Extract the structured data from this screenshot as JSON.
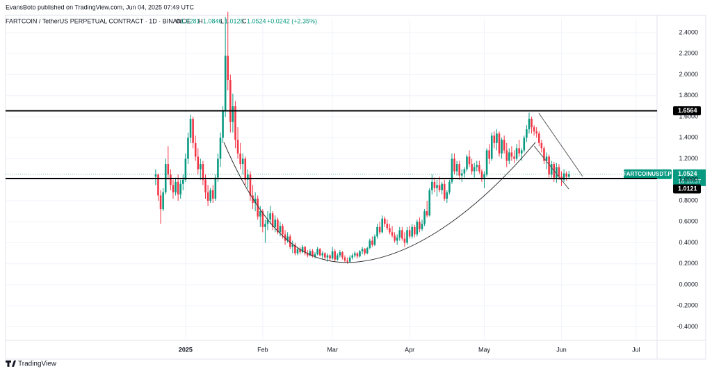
{
  "header": {
    "publisher": "EvansBoto published on TradingView.com, Jun 04, 2025 07:49 UTC",
    "instrument": "FARTCOIN / TetherUS PERPETUAL CONTRACT · 1D · BINANCE",
    "ohlc_labels": [
      "O",
      "H",
      "L",
      "C"
    ],
    "change": "+0.0242 (+2.35%)"
  },
  "footer": {
    "brand": "TradingView"
  },
  "chart_data": {
    "type": "candlestick",
    "up_color": "#089981",
    "down_color": "#f23645",
    "grid": true,
    "xlim": [
      -60.3,
      201.4
    ],
    "ylim": [
      -0.529,
      2.526
    ],
    "xticks": [
      {
        "value": 12,
        "label": "2025"
      },
      {
        "value": 43,
        "label": "Feb"
      },
      {
        "value": 71,
        "label": "Mar"
      },
      {
        "value": 102,
        "label": "Apr"
      },
      {
        "value": 132,
        "label": "May"
      },
      {
        "value": 163,
        "label": "Jun"
      },
      {
        "value": 193,
        "label": "Jul"
      }
    ],
    "yticks": [
      {
        "value": 2.4,
        "label": "2.4000"
      },
      {
        "value": 2.2,
        "label": "2.2000"
      },
      {
        "value": 2.0,
        "label": "2.0000"
      },
      {
        "value": 1.8,
        "label": "1.8000"
      },
      {
        "value": 1.6,
        "label": "1.6000"
      },
      {
        "value": 1.4,
        "label": "1.4000"
      },
      {
        "value": 1.2,
        "label": "1.2000"
      },
      {
        "value": 1.0,
        "label": "1.0000"
      },
      {
        "value": 0.8,
        "label": "0.8000"
      },
      {
        "value": 0.6,
        "label": "0.6000"
      },
      {
        "value": 0.4,
        "label": "0.4000"
      },
      {
        "value": 0.2,
        "label": "0.2000"
      },
      {
        "value": 0,
        "label": "0.0000"
      },
      {
        "value": -0.2,
        "label": "-0.2000"
      },
      {
        "value": -0.4,
        "label": "-0.4000"
      }
    ],
    "levels": [
      1.6564,
      1.0121
    ],
    "symbol": "FARTCOINUSDT.P",
    "countdown": "16:10:37",
    "candles": [
      [
        1.03,
        1.1,
        0.95,
        1.05
      ],
      [
        1.05,
        1.06,
        0.8,
        0.85
      ],
      [
        0.85,
        0.9,
        0.58,
        0.72
      ],
      [
        0.72,
        0.92,
        0.7,
        0.88
      ],
      [
        0.88,
        1.2,
        0.86,
        1.15
      ],
      [
        1.15,
        1.32,
        1.0,
        1.05
      ],
      [
        1.05,
        1.1,
        0.9,
        0.95
      ],
      [
        0.95,
        1.0,
        0.82,
        0.88
      ],
      [
        0.88,
        1.02,
        0.85,
        0.98
      ],
      [
        0.98,
        1.05,
        0.8,
        0.86
      ],
      [
        0.86,
        1.0,
        0.82,
        0.96
      ],
      [
        0.96,
        1.05,
        0.9,
        1.0
      ],
      [
        1.0,
        1.25,
        0.98,
        1.2
      ],
      [
        1.2,
        1.45,
        1.15,
        1.4
      ],
      [
        1.4,
        1.62,
        1.35,
        1.58
      ],
      [
        1.58,
        1.6,
        1.3,
        1.35
      ],
      [
        1.35,
        1.42,
        1.18,
        1.22
      ],
      [
        1.22,
        1.3,
        1.05,
        1.1
      ],
      [
        1.1,
        1.2,
        1.0,
        1.15
      ],
      [
        1.15,
        1.18,
        0.95,
        1.0
      ],
      [
        1.0,
        1.05,
        0.82,
        0.88
      ],
      [
        0.88,
        0.95,
        0.75,
        0.8
      ],
      [
        0.8,
        0.92,
        0.78,
        0.9
      ],
      [
        0.9,
        0.95,
        0.78,
        0.82
      ],
      [
        0.82,
        1.05,
        0.8,
        1.02
      ],
      [
        1.02,
        1.25,
        0.98,
        1.2
      ],
      [
        1.2,
        1.45,
        1.12,
        1.4
      ],
      [
        1.4,
        1.7,
        1.35,
        1.65
      ],
      [
        1.65,
        2.55,
        1.6,
        2.18
      ],
      [
        2.18,
        2.6,
        1.85,
        1.95
      ],
      [
        1.95,
        2.0,
        1.45,
        1.55
      ],
      [
        1.55,
        1.82,
        1.45,
        1.7
      ],
      [
        1.7,
        1.75,
        1.3,
        1.38
      ],
      [
        1.38,
        1.5,
        1.2,
        1.25
      ],
      [
        1.25,
        1.35,
        1.1,
        1.15
      ],
      [
        1.15,
        1.25,
        1.05,
        1.2
      ],
      [
        1.2,
        1.22,
        0.95,
        1.0
      ],
      [
        1.0,
        1.1,
        0.92,
        1.05
      ],
      [
        1.05,
        1.08,
        0.8,
        0.85
      ],
      [
        0.85,
        0.95,
        0.72,
        0.78
      ],
      [
        0.78,
        0.88,
        0.7,
        0.82
      ],
      [
        0.82,
        0.85,
        0.62,
        0.65
      ],
      [
        0.65,
        0.75,
        0.55,
        0.7
      ],
      [
        0.7,
        0.72,
        0.5,
        0.55
      ],
      [
        0.55,
        0.62,
        0.4,
        0.58
      ],
      [
        0.58,
        0.7,
        0.52,
        0.62
      ],
      [
        0.62,
        0.75,
        0.58,
        0.68
      ],
      [
        0.68,
        0.7,
        0.52,
        0.55
      ],
      [
        0.55,
        0.66,
        0.5,
        0.62
      ],
      [
        0.62,
        0.64,
        0.48,
        0.5
      ],
      [
        0.5,
        0.6,
        0.46,
        0.56
      ],
      [
        0.56,
        0.58,
        0.44,
        0.48
      ],
      [
        0.48,
        0.52,
        0.38,
        0.42
      ],
      [
        0.42,
        0.5,
        0.4,
        0.46
      ],
      [
        0.46,
        0.48,
        0.34,
        0.36
      ],
      [
        0.36,
        0.42,
        0.3,
        0.38
      ],
      [
        0.38,
        0.4,
        0.28,
        0.3
      ],
      [
        0.3,
        0.36,
        0.28,
        0.34
      ],
      [
        0.34,
        0.36,
        0.29,
        0.31
      ],
      [
        0.31,
        0.38,
        0.3,
        0.36
      ],
      [
        0.36,
        0.37,
        0.28,
        0.3
      ],
      [
        0.3,
        0.33,
        0.26,
        0.28
      ],
      [
        0.28,
        0.34,
        0.27,
        0.32
      ],
      [
        0.32,
        0.34,
        0.26,
        0.27
      ],
      [
        0.27,
        0.31,
        0.25,
        0.29
      ],
      [
        0.29,
        0.36,
        0.28,
        0.34
      ],
      [
        0.34,
        0.35,
        0.27,
        0.28
      ],
      [
        0.28,
        0.32,
        0.25,
        0.3
      ],
      [
        0.3,
        0.31,
        0.24,
        0.26
      ],
      [
        0.26,
        0.3,
        0.22,
        0.28
      ],
      [
        0.28,
        0.29,
        0.23,
        0.25
      ],
      [
        0.25,
        0.36,
        0.24,
        0.32
      ],
      [
        0.32,
        0.34,
        0.22,
        0.24
      ],
      [
        0.24,
        0.3,
        0.23,
        0.28
      ],
      [
        0.28,
        0.33,
        0.26,
        0.31
      ],
      [
        0.31,
        0.32,
        0.24,
        0.26
      ],
      [
        0.26,
        0.28,
        0.21,
        0.23
      ],
      [
        0.23,
        0.26,
        0.2,
        0.22
      ],
      [
        0.22,
        0.28,
        0.21,
        0.26
      ],
      [
        0.26,
        0.3,
        0.24,
        0.28
      ],
      [
        0.28,
        0.32,
        0.26,
        0.3
      ],
      [
        0.3,
        0.31,
        0.25,
        0.27
      ],
      [
        0.27,
        0.33,
        0.26,
        0.32
      ],
      [
        0.32,
        0.36,
        0.29,
        0.34
      ],
      [
        0.34,
        0.35,
        0.28,
        0.3
      ],
      [
        0.3,
        0.36,
        0.29,
        0.35
      ],
      [
        0.35,
        0.44,
        0.34,
        0.42
      ],
      [
        0.42,
        0.46,
        0.36,
        0.38
      ],
      [
        0.38,
        0.48,
        0.37,
        0.46
      ],
      [
        0.46,
        0.58,
        0.44,
        0.55
      ],
      [
        0.55,
        0.6,
        0.48,
        0.5
      ],
      [
        0.5,
        0.66,
        0.49,
        0.63
      ],
      [
        0.63,
        0.65,
        0.55,
        0.58
      ],
      [
        0.58,
        0.62,
        0.52,
        0.54
      ],
      [
        0.54,
        0.58,
        0.48,
        0.5
      ],
      [
        0.5,
        0.56,
        0.45,
        0.47
      ],
      [
        0.47,
        0.5,
        0.4,
        0.42
      ],
      [
        0.42,
        0.48,
        0.38,
        0.45
      ],
      [
        0.45,
        0.55,
        0.42,
        0.52
      ],
      [
        0.52,
        0.55,
        0.42,
        0.44
      ],
      [
        0.44,
        0.5,
        0.36,
        0.4
      ],
      [
        0.4,
        0.55,
        0.38,
        0.52
      ],
      [
        0.52,
        0.56,
        0.44,
        0.46
      ],
      [
        0.46,
        0.58,
        0.44,
        0.55
      ],
      [
        0.55,
        0.57,
        0.45,
        0.48
      ],
      [
        0.48,
        0.62,
        0.46,
        0.6
      ],
      [
        0.6,
        0.64,
        0.5,
        0.53
      ],
      [
        0.53,
        0.62,
        0.51,
        0.58
      ],
      [
        0.58,
        0.72,
        0.56,
        0.7
      ],
      [
        0.7,
        0.8,
        0.64,
        0.66
      ],
      [
        0.66,
        0.92,
        0.65,
        0.9
      ],
      [
        0.9,
        1.05,
        0.86,
        0.98
      ],
      [
        0.98,
        1.02,
        0.88,
        0.92
      ],
      [
        0.92,
        1.0,
        0.84,
        0.95
      ],
      [
        0.95,
        1.03,
        0.88,
        0.9
      ],
      [
        0.9,
        0.98,
        0.86,
        0.96
      ],
      [
        0.96,
        1.0,
        0.8,
        0.82
      ],
      [
        0.82,
        0.9,
        0.78,
        0.88
      ],
      [
        0.88,
        1.0,
        0.86,
        0.98
      ],
      [
        0.98,
        1.25,
        0.96,
        1.2
      ],
      [
        1.2,
        1.25,
        1.05,
        1.08
      ],
      [
        1.08,
        1.18,
        1.04,
        1.15
      ],
      [
        1.15,
        1.18,
        1.0,
        1.04
      ],
      [
        1.04,
        1.1,
        0.98,
        1.06
      ],
      [
        1.06,
        1.12,
        1.02,
        1.1
      ],
      [
        1.1,
        1.24,
        1.08,
        1.22
      ],
      [
        1.22,
        1.28,
        1.12,
        1.15
      ],
      [
        1.15,
        1.2,
        1.05,
        1.08
      ],
      [
        1.08,
        1.16,
        1.02,
        1.12
      ],
      [
        1.12,
        1.18,
        1.08,
        1.14
      ],
      [
        1.14,
        1.18,
        1.06,
        1.08
      ],
      [
        1.08,
        1.1,
        0.98,
        1.02
      ],
      [
        1.02,
        1.08,
        0.92,
        1.05
      ],
      [
        1.05,
        1.3,
        1.03,
        1.28
      ],
      [
        1.28,
        1.34,
        1.15,
        1.2
      ],
      [
        1.2,
        1.45,
        1.18,
        1.42
      ],
      [
        1.42,
        1.46,
        1.3,
        1.35
      ],
      [
        1.35,
        1.48,
        1.28,
        1.44
      ],
      [
        1.44,
        1.46,
        1.22,
        1.25
      ],
      [
        1.25,
        1.4,
        1.2,
        1.38
      ],
      [
        1.38,
        1.42,
        1.25,
        1.28
      ],
      [
        1.28,
        1.35,
        1.12,
        1.18
      ],
      [
        1.18,
        1.3,
        1.15,
        1.26
      ],
      [
        1.26,
        1.32,
        1.18,
        1.22
      ],
      [
        1.22,
        1.28,
        1.16,
        1.2
      ],
      [
        1.2,
        1.34,
        1.18,
        1.3
      ],
      [
        1.3,
        1.38,
        1.22,
        1.25
      ],
      [
        1.25,
        1.3,
        1.18,
        1.28
      ],
      [
        1.28,
        1.42,
        1.26,
        1.4
      ],
      [
        1.4,
        1.52,
        1.36,
        1.48
      ],
      [
        1.48,
        1.64,
        1.44,
        1.58
      ],
      [
        1.58,
        1.6,
        1.44,
        1.5
      ],
      [
        1.5,
        1.52,
        1.42,
        1.46
      ],
      [
        1.46,
        1.5,
        1.4,
        1.44
      ],
      [
        1.44,
        1.46,
        1.32,
        1.35
      ],
      [
        1.35,
        1.38,
        1.26,
        1.3
      ],
      [
        1.3,
        1.32,
        1.15,
        1.18
      ],
      [
        1.18,
        1.26,
        1.1,
        1.22
      ],
      [
        1.22,
        1.24,
        1.02,
        1.05
      ],
      [
        1.05,
        1.18,
        1.02,
        1.15
      ],
      [
        1.15,
        1.17,
        0.98,
        1.02
      ],
      [
        1.02,
        1.16,
        0.97,
        1.12
      ],
      [
        1.12,
        1.15,
        1.0,
        1.03
      ],
      [
        1.03,
        1.08,
        0.94,
        1.0
      ],
      [
        1.0,
        1.1,
        0.98,
        1.06
      ],
      [
        1.06,
        1.08,
        0.99,
        1.0281
      ],
      [
        1.0281,
        1.0846,
        1.0128,
        1.0524
      ]
    ]
  }
}
